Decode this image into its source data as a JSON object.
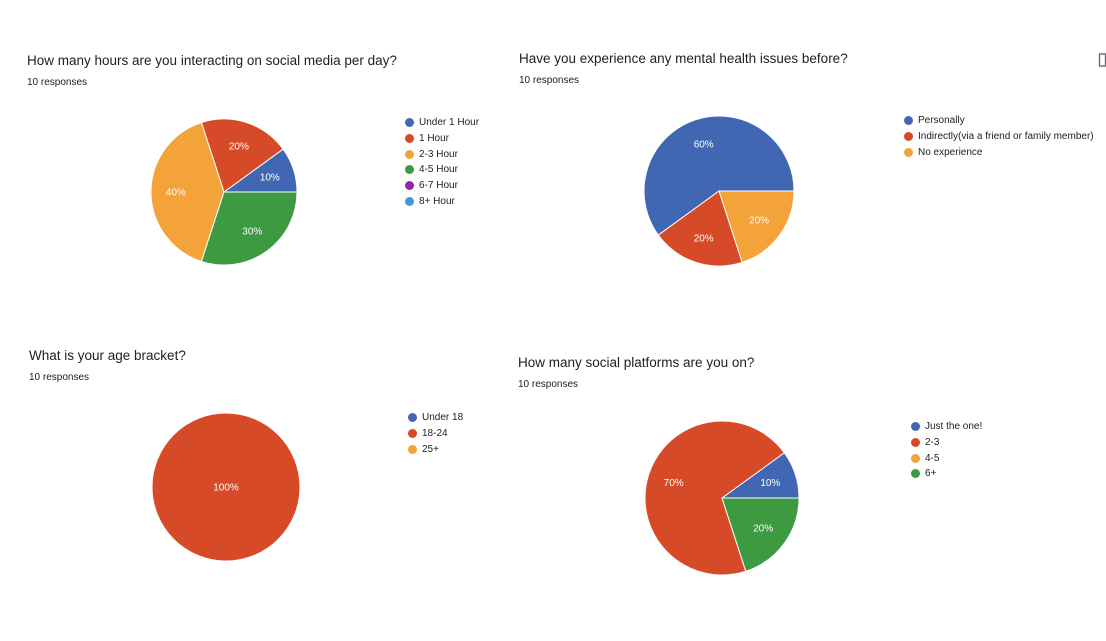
{
  "chart_data": [
    {
      "type": "pie",
      "title": "How many hours are you interacting on social media per day?",
      "subtitle": "10 responses",
      "categories": [
        "Under 1 Hour",
        "1 Hour",
        "2-3 Hour",
        "4-5 Hour",
        "6-7 Hour",
        "8+ Hour"
      ],
      "values": [
        10,
        20,
        40,
        30,
        0,
        0
      ],
      "labels": [
        "10%",
        "20%",
        "40%",
        "30%",
        "",
        ""
      ],
      "colors": [
        "#4267b2",
        "#d64a28",
        "#f4a23a",
        "#3d9a41",
        "#8e2aa0",
        "#3f9bd0"
      ],
      "legend_position": "right"
    },
    {
      "type": "pie",
      "title": "Have you experience any mental health issues before?",
      "subtitle": "10 responses",
      "categories": [
        "Personally",
        "Indirectly(via a friend or family member)",
        "No experience"
      ],
      "values": [
        60,
        20,
        20
      ],
      "labels": [
        "60%",
        "20%",
        "20%"
      ],
      "colors": [
        "#4267b2",
        "#d64a28",
        "#f4a23a"
      ],
      "legend_position": "right"
    },
    {
      "type": "pie",
      "title": "What is your age bracket?",
      "subtitle": "10 responses",
      "categories": [
        "Under 18",
        "18-24",
        "25+"
      ],
      "values": [
        0,
        100,
        0
      ],
      "labels": [
        "",
        "100%",
        ""
      ],
      "colors": [
        "#4267b2",
        "#d64a28",
        "#f4a23a"
      ],
      "legend_position": "right"
    },
    {
      "type": "pie",
      "title": "How many social platforms are you on?",
      "subtitle": "10 responses",
      "categories": [
        "Just the one!",
        "2-3",
        "4-5",
        "6+"
      ],
      "values": [
        10,
        70,
        0,
        20
      ],
      "labels": [
        "10%",
        "70%",
        "",
        "20%"
      ],
      "colors": [
        "#4267b2",
        "#d64a28",
        "#f4a23a",
        "#3d9a41"
      ],
      "legend_position": "right"
    }
  ],
  "icons": {
    "corner": "copy-icon"
  }
}
